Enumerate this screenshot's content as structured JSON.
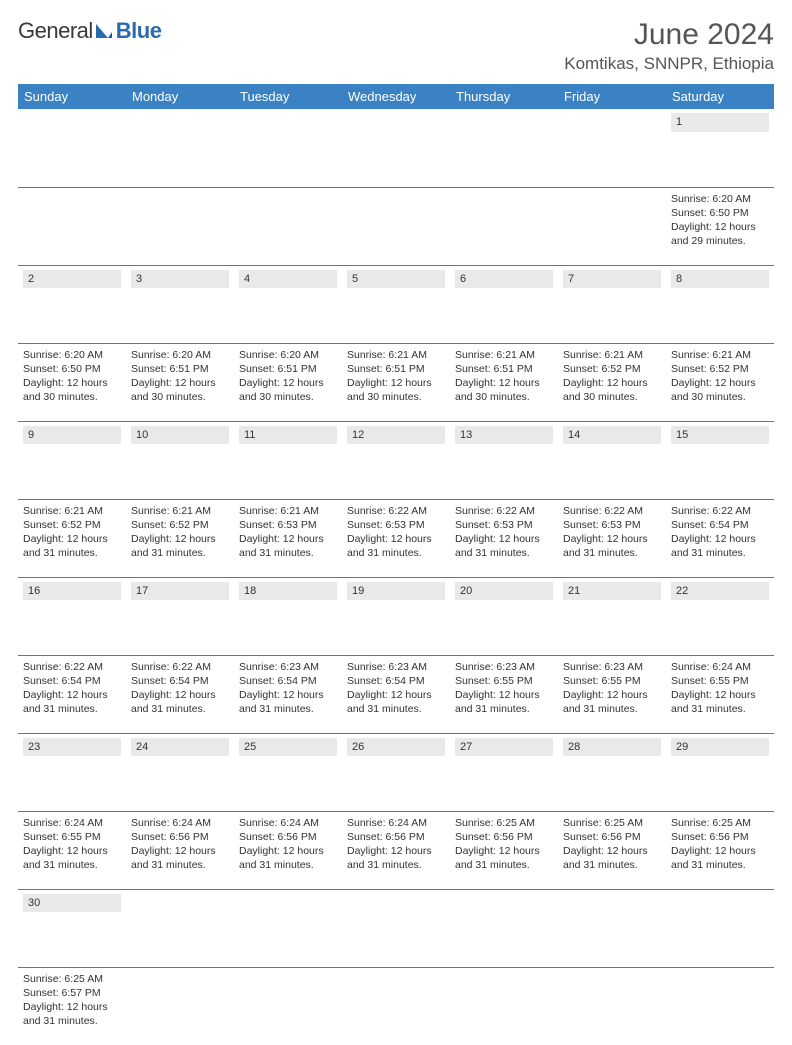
{
  "logo": {
    "part1": "General",
    "part2": "Blue"
  },
  "title": "June 2024",
  "location": "Komtikas, SNNPR, Ethiopia",
  "colors": {
    "header_bg": "#3a82c4",
    "header_text": "#ffffff",
    "daynum_bg": "#e9e9e9",
    "border": "#3a82c4",
    "text": "#333333",
    "title": "#555555"
  },
  "weekdays": [
    "Sunday",
    "Monday",
    "Tuesday",
    "Wednesday",
    "Thursday",
    "Friday",
    "Saturday"
  ],
  "weeks": [
    [
      null,
      null,
      null,
      null,
      null,
      null,
      {
        "n": "1",
        "sr": "Sunrise: 6:20 AM",
        "ss": "Sunset: 6:50 PM",
        "d1": "Daylight: 12 hours",
        "d2": "and 29 minutes."
      }
    ],
    [
      {
        "n": "2",
        "sr": "Sunrise: 6:20 AM",
        "ss": "Sunset: 6:50 PM",
        "d1": "Daylight: 12 hours",
        "d2": "and 30 minutes."
      },
      {
        "n": "3",
        "sr": "Sunrise: 6:20 AM",
        "ss": "Sunset: 6:51 PM",
        "d1": "Daylight: 12 hours",
        "d2": "and 30 minutes."
      },
      {
        "n": "4",
        "sr": "Sunrise: 6:20 AM",
        "ss": "Sunset: 6:51 PM",
        "d1": "Daylight: 12 hours",
        "d2": "and 30 minutes."
      },
      {
        "n": "5",
        "sr": "Sunrise: 6:21 AM",
        "ss": "Sunset: 6:51 PM",
        "d1": "Daylight: 12 hours",
        "d2": "and 30 minutes."
      },
      {
        "n": "6",
        "sr": "Sunrise: 6:21 AM",
        "ss": "Sunset: 6:51 PM",
        "d1": "Daylight: 12 hours",
        "d2": "and 30 minutes."
      },
      {
        "n": "7",
        "sr": "Sunrise: 6:21 AM",
        "ss": "Sunset: 6:52 PM",
        "d1": "Daylight: 12 hours",
        "d2": "and 30 minutes."
      },
      {
        "n": "8",
        "sr": "Sunrise: 6:21 AM",
        "ss": "Sunset: 6:52 PM",
        "d1": "Daylight: 12 hours",
        "d2": "and 30 minutes."
      }
    ],
    [
      {
        "n": "9",
        "sr": "Sunrise: 6:21 AM",
        "ss": "Sunset: 6:52 PM",
        "d1": "Daylight: 12 hours",
        "d2": "and 31 minutes."
      },
      {
        "n": "10",
        "sr": "Sunrise: 6:21 AM",
        "ss": "Sunset: 6:52 PM",
        "d1": "Daylight: 12 hours",
        "d2": "and 31 minutes."
      },
      {
        "n": "11",
        "sr": "Sunrise: 6:21 AM",
        "ss": "Sunset: 6:53 PM",
        "d1": "Daylight: 12 hours",
        "d2": "and 31 minutes."
      },
      {
        "n": "12",
        "sr": "Sunrise: 6:22 AM",
        "ss": "Sunset: 6:53 PM",
        "d1": "Daylight: 12 hours",
        "d2": "and 31 minutes."
      },
      {
        "n": "13",
        "sr": "Sunrise: 6:22 AM",
        "ss": "Sunset: 6:53 PM",
        "d1": "Daylight: 12 hours",
        "d2": "and 31 minutes."
      },
      {
        "n": "14",
        "sr": "Sunrise: 6:22 AM",
        "ss": "Sunset: 6:53 PM",
        "d1": "Daylight: 12 hours",
        "d2": "and 31 minutes."
      },
      {
        "n": "15",
        "sr": "Sunrise: 6:22 AM",
        "ss": "Sunset: 6:54 PM",
        "d1": "Daylight: 12 hours",
        "d2": "and 31 minutes."
      }
    ],
    [
      {
        "n": "16",
        "sr": "Sunrise: 6:22 AM",
        "ss": "Sunset: 6:54 PM",
        "d1": "Daylight: 12 hours",
        "d2": "and 31 minutes."
      },
      {
        "n": "17",
        "sr": "Sunrise: 6:22 AM",
        "ss": "Sunset: 6:54 PM",
        "d1": "Daylight: 12 hours",
        "d2": "and 31 minutes."
      },
      {
        "n": "18",
        "sr": "Sunrise: 6:23 AM",
        "ss": "Sunset: 6:54 PM",
        "d1": "Daylight: 12 hours",
        "d2": "and 31 minutes."
      },
      {
        "n": "19",
        "sr": "Sunrise: 6:23 AM",
        "ss": "Sunset: 6:54 PM",
        "d1": "Daylight: 12 hours",
        "d2": "and 31 minutes."
      },
      {
        "n": "20",
        "sr": "Sunrise: 6:23 AM",
        "ss": "Sunset: 6:55 PM",
        "d1": "Daylight: 12 hours",
        "d2": "and 31 minutes."
      },
      {
        "n": "21",
        "sr": "Sunrise: 6:23 AM",
        "ss": "Sunset: 6:55 PM",
        "d1": "Daylight: 12 hours",
        "d2": "and 31 minutes."
      },
      {
        "n": "22",
        "sr": "Sunrise: 6:24 AM",
        "ss": "Sunset: 6:55 PM",
        "d1": "Daylight: 12 hours",
        "d2": "and 31 minutes."
      }
    ],
    [
      {
        "n": "23",
        "sr": "Sunrise: 6:24 AM",
        "ss": "Sunset: 6:55 PM",
        "d1": "Daylight: 12 hours",
        "d2": "and 31 minutes."
      },
      {
        "n": "24",
        "sr": "Sunrise: 6:24 AM",
        "ss": "Sunset: 6:56 PM",
        "d1": "Daylight: 12 hours",
        "d2": "and 31 minutes."
      },
      {
        "n": "25",
        "sr": "Sunrise: 6:24 AM",
        "ss": "Sunset: 6:56 PM",
        "d1": "Daylight: 12 hours",
        "d2": "and 31 minutes."
      },
      {
        "n": "26",
        "sr": "Sunrise: 6:24 AM",
        "ss": "Sunset: 6:56 PM",
        "d1": "Daylight: 12 hours",
        "d2": "and 31 minutes."
      },
      {
        "n": "27",
        "sr": "Sunrise: 6:25 AM",
        "ss": "Sunset: 6:56 PM",
        "d1": "Daylight: 12 hours",
        "d2": "and 31 minutes."
      },
      {
        "n": "28",
        "sr": "Sunrise: 6:25 AM",
        "ss": "Sunset: 6:56 PM",
        "d1": "Daylight: 12 hours",
        "d2": "and 31 minutes."
      },
      {
        "n": "29",
        "sr": "Sunrise: 6:25 AM",
        "ss": "Sunset: 6:56 PM",
        "d1": "Daylight: 12 hours",
        "d2": "and 31 minutes."
      }
    ],
    [
      {
        "n": "30",
        "sr": "Sunrise: 6:25 AM",
        "ss": "Sunset: 6:57 PM",
        "d1": "Daylight: 12 hours",
        "d2": "and 31 minutes."
      },
      null,
      null,
      null,
      null,
      null,
      null
    ]
  ]
}
